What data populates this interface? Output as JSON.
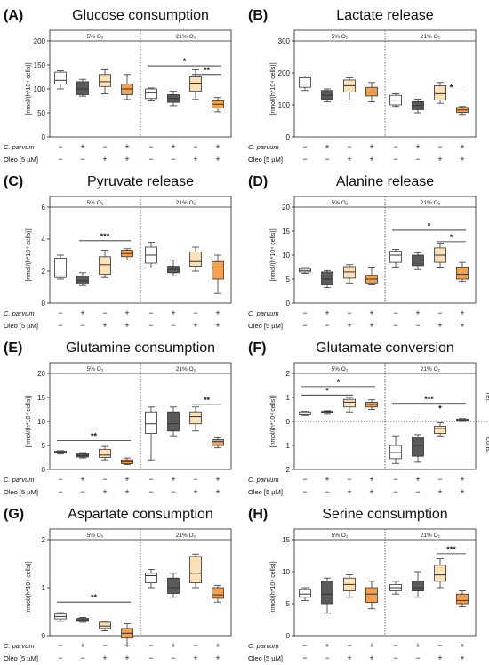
{
  "figure": {
    "row_labels": {
      "treatment": "C. parvum",
      "drug": "Oleo [5 µM]"
    },
    "conditions": [
      "5% O₂",
      "21% O₂"
    ],
    "y_label": "[nmol/(h*10⁴ cells)]",
    "marks": {
      "treatment": [
        "−",
        "+",
        "−",
        "+"
      ],
      "drug": [
        "−",
        "−",
        "+",
        "+"
      ]
    },
    "group_colors": [
      "#ffffff",
      "#5a5a5a",
      "#fce0b8",
      "#f4a04c"
    ],
    "box_edge": "#333333"
  },
  "chart_data": [
    {
      "letter": "(A)",
      "title": "Glucose consumption",
      "type": "box",
      "ylim": [
        0,
        200
      ],
      "yticks": [
        0,
        50,
        100,
        150,
        200
      ],
      "groups": {
        "5% O₂": [
          {
            "min": 100,
            "q1": 110,
            "median": 118,
            "q3": 135,
            "max": 138
          },
          {
            "min": 85,
            "q1": 88,
            "median": 100,
            "q3": 115,
            "max": 120
          },
          {
            "min": 90,
            "q1": 105,
            "median": 115,
            "q3": 130,
            "max": 140
          },
          {
            "min": 78,
            "q1": 88,
            "median": 100,
            "q3": 110,
            "max": 130
          }
        ],
        "21% O₂": [
          {
            "min": 75,
            "q1": 80,
            "median": 92,
            "q3": 100,
            "max": 102
          },
          {
            "min": 65,
            "q1": 72,
            "median": 80,
            "q3": 88,
            "max": 95
          },
          {
            "min": 78,
            "q1": 95,
            "median": 112,
            "q3": 125,
            "max": 140
          },
          {
            "min": 52,
            "q1": 60,
            "median": 68,
            "q3": 75,
            "max": 82
          }
        ]
      },
      "significance": [
        {
          "condition": "21% O₂",
          "from": 3,
          "to": 4,
          "label": "**",
          "y": 130
        },
        {
          "condition": "21% O₂",
          "from": 1,
          "to": 4,
          "label": "*",
          "y": 148
        }
      ]
    },
    {
      "letter": "(B)",
      "title": "Lactate release",
      "type": "box",
      "ylim": [
        0,
        300
      ],
      "yticks": [
        0,
        100,
        200,
        300
      ],
      "groups": {
        "5% O₂": [
          {
            "min": 145,
            "q1": 155,
            "median": 165,
            "q3": 185,
            "max": 190
          },
          {
            "min": 110,
            "q1": 118,
            "median": 130,
            "q3": 145,
            "max": 150
          },
          {
            "min": 115,
            "q1": 140,
            "median": 160,
            "q3": 178,
            "max": 185
          },
          {
            "min": 110,
            "q1": 128,
            "median": 140,
            "q3": 155,
            "max": 170
          }
        ],
        "21% O₂": [
          {
            "min": 95,
            "q1": 100,
            "median": 115,
            "q3": 130,
            "max": 135
          },
          {
            "min": 75,
            "q1": 85,
            "median": 98,
            "q3": 110,
            "max": 118
          },
          {
            "min": 105,
            "q1": 115,
            "median": 135,
            "q3": 160,
            "max": 170
          },
          {
            "min": 70,
            "q1": 76,
            "median": 84,
            "q3": 92,
            "max": 95
          }
        ]
      },
      "significance": [
        {
          "condition": "21% O₂",
          "from": 3,
          "to": 4,
          "label": "*",
          "y": 140
        }
      ]
    },
    {
      "letter": "(C)",
      "title": "Pyruvate release",
      "type": "box",
      "ylim": [
        0,
        6
      ],
      "yticks": [
        0,
        2,
        4,
        6
      ],
      "groups": {
        "5% O₂": [
          {
            "min": 1.5,
            "q1": 1.6,
            "median": 1.7,
            "q3": 2.8,
            "max": 3.0
          },
          {
            "min": 1.1,
            "q1": 1.2,
            "median": 1.4,
            "q3": 1.7,
            "max": 1.9
          },
          {
            "min": 1.6,
            "q1": 1.8,
            "median": 2.4,
            "q3": 2.9,
            "max": 3.3
          },
          {
            "min": 2.7,
            "q1": 2.9,
            "median": 3.1,
            "q3": 3.3,
            "max": 3.4
          }
        ],
        "21% O₂": [
          {
            "min": 2.2,
            "q1": 2.5,
            "median": 3.0,
            "q3": 3.5,
            "max": 3.8
          },
          {
            "min": 1.7,
            "q1": 1.9,
            "median": 2.1,
            "q3": 2.3,
            "max": 2.7
          },
          {
            "min": 2.0,
            "q1": 2.3,
            "median": 2.6,
            "q3": 3.2,
            "max": 3.5
          },
          {
            "min": 0.6,
            "q1": 1.5,
            "median": 2.2,
            "q3": 2.6,
            "max": 3.0
          }
        ]
      },
      "significance": [
        {
          "condition": "5% O₂",
          "from": 2,
          "to": 4,
          "label": "***",
          "y": 3.9
        }
      ]
    },
    {
      "letter": "(D)",
      "title": "Alanine release",
      "type": "box",
      "ylim": [
        0,
        20
      ],
      "yticks": [
        0,
        5,
        10,
        15,
        20
      ],
      "groups": {
        "5% O₂": [
          {
            "min": 6.2,
            "q1": 6.5,
            "median": 6.8,
            "q3": 7.2,
            "max": 7.4
          },
          {
            "min": 3.2,
            "q1": 3.8,
            "median": 5.0,
            "q3": 6.5,
            "max": 6.8
          },
          {
            "min": 4.2,
            "q1": 5.2,
            "median": 6.5,
            "q3": 7.6,
            "max": 8.0
          },
          {
            "min": 3.8,
            "q1": 4.2,
            "median": 5.0,
            "q3": 5.8,
            "max": 7.5
          }
        ],
        "21% O₂": [
          {
            "min": 7.5,
            "q1": 8.5,
            "median": 10.0,
            "q3": 10.8,
            "max": 11.2
          },
          {
            "min": 7.0,
            "q1": 7.8,
            "median": 9.0,
            "q3": 10.0,
            "max": 10.5
          },
          {
            "min": 7.5,
            "q1": 8.5,
            "median": 10.0,
            "q3": 11.5,
            "max": 12.5
          },
          {
            "min": 4.5,
            "q1": 5.0,
            "median": 6.0,
            "q3": 7.5,
            "max": 8.5
          }
        ]
      },
      "significance": [
        {
          "condition": "21% O₂",
          "from": 3,
          "to": 4,
          "label": "*",
          "y": 12.8
        },
        {
          "condition": "21% O₂",
          "from": 1,
          "to": 4,
          "label": "*",
          "y": 15.2
        }
      ]
    },
    {
      "letter": "(E)",
      "title": "Glutamine consumption",
      "type": "box",
      "ylim": [
        0,
        20
      ],
      "yticks": [
        0,
        5,
        10,
        15,
        20
      ],
      "groups": {
        "5% O₂": [
          {
            "min": 3.2,
            "q1": 3.4,
            "median": 3.6,
            "q3": 3.8,
            "max": 3.9
          },
          {
            "min": 2.4,
            "q1": 2.6,
            "median": 2.9,
            "q3": 3.3,
            "max": 3.5
          },
          {
            "min": 2.0,
            "q1": 2.5,
            "median": 3.0,
            "q3": 4.2,
            "max": 4.8
          },
          {
            "min": 1.0,
            "q1": 1.2,
            "median": 1.6,
            "q3": 2.0,
            "max": 2.4
          }
        ],
        "21% O₂": [
          {
            "min": 2.0,
            "q1": 7.5,
            "median": 9.5,
            "q3": 12.0,
            "max": 13.0
          },
          {
            "min": 7.0,
            "q1": 8.0,
            "median": 9.5,
            "q3": 12.0,
            "max": 13.0
          },
          {
            "min": 8.0,
            "q1": 9.5,
            "median": 11.0,
            "q3": 12.0,
            "max": 13.0
          },
          {
            "min": 4.5,
            "q1": 5.0,
            "median": 5.8,
            "q3": 6.2,
            "max": 6.6
          }
        ]
      },
      "significance": [
        {
          "condition": "5% O₂",
          "from": 1,
          "to": 4,
          "label": "**",
          "y": 6.0
        },
        {
          "condition": "21% O₂",
          "from": 3,
          "to": 4,
          "label": "**",
          "y": 13.5
        }
      ]
    },
    {
      "letter": "(F)",
      "title": "Glutamate conversion",
      "type": "box",
      "ylim": [
        -2,
        2
      ],
      "yticks": [
        -2,
        -1,
        0,
        1,
        2
      ],
      "yticklabels": [
        "2",
        "1",
        "0",
        "1",
        "2"
      ],
      "side_labels": [
        "rel.",
        "cons."
      ],
      "groups": {
        "5% O₂": [
          {
            "min": 0.25,
            "q1": 0.28,
            "median": 0.35,
            "q3": 0.4,
            "max": 0.42
          },
          {
            "min": 0.3,
            "q1": 0.35,
            "median": 0.4,
            "q3": 0.42,
            "max": 0.45
          },
          {
            "min": 0.4,
            "q1": 0.6,
            "median": 0.8,
            "q3": 0.92,
            "max": 1.0
          },
          {
            "min": 0.5,
            "q1": 0.6,
            "median": 0.7,
            "q3": 0.8,
            "max": 0.9
          }
        ],
        "21% O₂": [
          {
            "min": -1.75,
            "q1": -1.55,
            "median": -1.3,
            "q3": -1.0,
            "max": -0.6
          },
          {
            "min": -1.7,
            "q1": -1.45,
            "median": -1.0,
            "q3": -0.65,
            "max": -0.55
          },
          {
            "min": -0.6,
            "q1": -0.5,
            "median": -0.3,
            "q3": -0.2,
            "max": -0.05
          },
          {
            "min": 0.0,
            "q1": 0.02,
            "median": 0.05,
            "q3": 0.1,
            "max": 0.12
          }
        ]
      },
      "significance": [
        {
          "condition": "5% O₂",
          "from": 1,
          "to": 3,
          "label": "*",
          "y": 1.1
        },
        {
          "condition": "5% O₂",
          "from": 1,
          "to": 4,
          "label": "*",
          "y": 1.45
        },
        {
          "condition": "21% O₂",
          "from": 2,
          "to": 4,
          "label": "*",
          "y": 0.35
        },
        {
          "condition": "21% O₂",
          "from": 1,
          "to": 4,
          "label": "***",
          "y": 0.75
        }
      ]
    },
    {
      "letter": "(G)",
      "title": "Aspartate consumption",
      "type": "box",
      "ylim": [
        0,
        2
      ],
      "yticks": [
        0,
        1,
        2
      ],
      "groups": {
        "5% O₂": [
          {
            "min": 0.3,
            "q1": 0.35,
            "median": 0.4,
            "q3": 0.45,
            "max": 0.48
          },
          {
            "min": 0.28,
            "q1": 0.3,
            "median": 0.33,
            "q3": 0.36,
            "max": 0.38
          },
          {
            "min": 0.1,
            "q1": 0.15,
            "median": 0.2,
            "q3": 0.28,
            "max": 0.3
          },
          {
            "min": -0.2,
            "q1": -0.05,
            "median": 0.05,
            "q3": 0.15,
            "max": 0.25
          }
        ],
        "21% O₂": [
          {
            "min": 1.0,
            "q1": 1.1,
            "median": 1.25,
            "q3": 1.3,
            "max": 1.38
          },
          {
            "min": 0.8,
            "q1": 0.88,
            "median": 1.0,
            "q3": 1.2,
            "max": 1.3
          },
          {
            "min": 1.0,
            "q1": 1.1,
            "median": 1.3,
            "q3": 1.65,
            "max": 1.7
          },
          {
            "min": 0.7,
            "q1": 0.78,
            "median": 0.85,
            "q3": 1.0,
            "max": 1.05
          }
        ]
      },
      "significance": [
        {
          "condition": "5% O₂",
          "from": 1,
          "to": 4,
          "label": "**",
          "y": 0.7
        }
      ]
    },
    {
      "letter": "(H)",
      "title": "Serine consumption",
      "type": "box",
      "ylim": [
        0,
        15
      ],
      "yticks": [
        0,
        5,
        10,
        15
      ],
      "groups": {
        "5% O₂": [
          {
            "min": 5.5,
            "q1": 6.0,
            "median": 6.5,
            "q3": 7.2,
            "max": 7.5
          },
          {
            "min": 3.5,
            "q1": 5.0,
            "median": 6.5,
            "q3": 8.5,
            "max": 9.0
          },
          {
            "min": 6.0,
            "q1": 7.0,
            "median": 8.0,
            "q3": 9.0,
            "max": 9.5
          },
          {
            "min": 4.2,
            "q1": 5.2,
            "median": 6.5,
            "q3": 7.5,
            "max": 8.5
          }
        ],
        "21% O₂": [
          {
            "min": 6.5,
            "q1": 7.0,
            "median": 7.5,
            "q3": 8.0,
            "max": 8.5
          },
          {
            "min": 6.0,
            "q1": 7.0,
            "median": 7.5,
            "q3": 8.5,
            "max": 10.0
          },
          {
            "min": 7.5,
            "q1": 8.5,
            "median": 9.5,
            "q3": 11.0,
            "max": 12.0
          },
          {
            "min": 4.5,
            "q1": 5.0,
            "median": 5.5,
            "q3": 6.5,
            "max": 7.0
          }
        ]
      },
      "significance": [
        {
          "condition": "21% O₂",
          "from": 3,
          "to": 4,
          "label": "***",
          "y": 12.8
        }
      ]
    }
  ]
}
